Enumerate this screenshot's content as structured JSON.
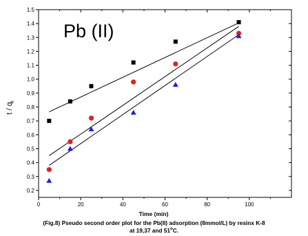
{
  "chart_data": {
    "type": "scatter",
    "annotation": "Pb (II)",
    "xlabel": "Time (min)",
    "ylabel": "t / q",
    "ylabel_subscript": "t",
    "xlim": [
      0,
      120
    ],
    "ylim": [
      0.15,
      1.5
    ],
    "xticks": [
      0,
      20,
      40,
      60,
      80,
      100
    ],
    "yticks": [
      0.2,
      0.3,
      0.4,
      0.5,
      0.6,
      0.7,
      0.8,
      0.9,
      1.0,
      1.1,
      1.2,
      1.3,
      1.4,
      1.5
    ],
    "ytick_labels": [
      "0.2",
      "0.3",
      "0.4",
      "0.5",
      "0.6",
      "0.7",
      "0.8",
      "0.9",
      "1.0",
      "1.1",
      "1.2",
      "1.3",
      "1.4",
      "1.5"
    ],
    "grid": false,
    "series": [
      {
        "marker": "square",
        "color": "#000000",
        "x": [
          5,
          15,
          25,
          45,
          65,
          95
        ],
        "y": [
          0.7,
          0.84,
          0.95,
          1.12,
          1.27,
          1.41
        ],
        "fit": {
          "x": [
            5,
            95
          ],
          "y": [
            0.765,
            1.405
          ]
        }
      },
      {
        "marker": "circle",
        "color": "#ee1c1c",
        "x": [
          5,
          15,
          25,
          45,
          65,
          95
        ],
        "y": [
          0.35,
          0.55,
          0.72,
          0.98,
          1.11,
          1.33
        ],
        "fit": {
          "x": [
            5,
            95
          ],
          "y": [
            0.45,
            1.38
          ]
        }
      },
      {
        "marker": "triangle",
        "color": "#1c1cee",
        "x": [
          5,
          15,
          25,
          45,
          65,
          95
        ],
        "y": [
          0.27,
          0.5,
          0.64,
          0.76,
          0.96,
          1.31
        ],
        "fit": {
          "x": [
            5,
            95
          ],
          "y": [
            0.38,
            1.32
          ]
        }
      }
    ]
  },
  "caption": {
    "line1": "(Fig.8) Pseudo second order plot for the Pb(II) adsorption (8mmol/L) by resinx K-8",
    "line2_pre": "at 19,37 and 51",
    "line2_sup": "o",
    "line2_post": "C."
  }
}
